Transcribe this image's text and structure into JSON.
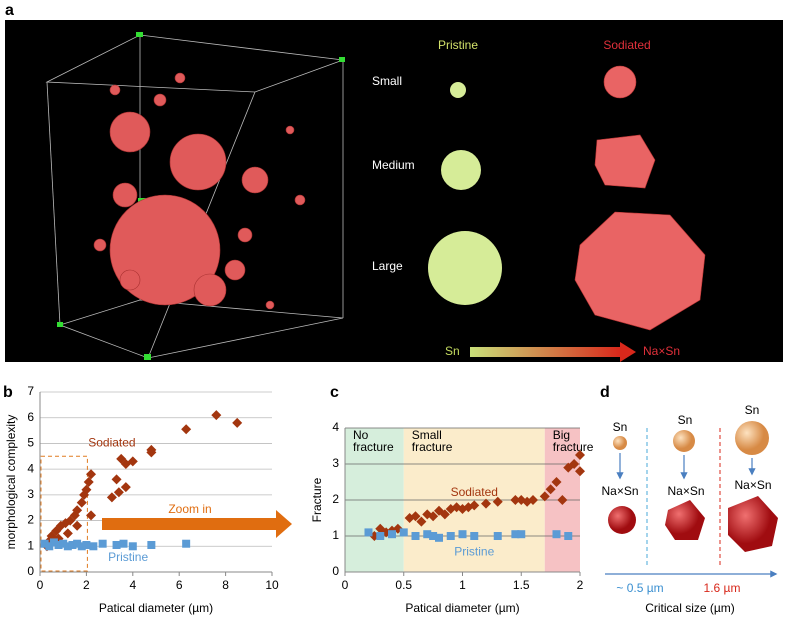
{
  "panel_labels": [
    "a",
    "b",
    "c",
    "d"
  ],
  "panel_a": {
    "columns": [
      "Pristine",
      "Sodiated"
    ],
    "rows": [
      "Small",
      "Medium",
      "Large"
    ],
    "gradient_start": "Sn",
    "gradient_end": "Na×Sn"
  },
  "chart_data": [
    {
      "type": "scatter",
      "xlabel": "Patical diameter (µm)",
      "ylabel": "morphological complexity",
      "annotation": "Zoom in",
      "xlim": [
        0,
        10
      ],
      "xticks": [
        0,
        2,
        4,
        6,
        8,
        10
      ],
      "ylim": [
        0,
        7
      ],
      "yticks": [
        0,
        1,
        2,
        3,
        4,
        5,
        6,
        7
      ],
      "grid": true,
      "zoom_box": {
        "xlim": [
          0,
          2
        ],
        "ylim": [
          0,
          4.5
        ]
      },
      "series": [
        {
          "name": "Sodiated",
          "color": "#a3360f",
          "marker": "diamond",
          "x": [
            7.6,
            8.5,
            6.3,
            4.8,
            4.8,
            3.5,
            3.7,
            4.0,
            3.3,
            3.7,
            3.4,
            3.1,
            2.2,
            2.1,
            2.0,
            1.9,
            1.8,
            1.6,
            1.5,
            1.3,
            1.1,
            0.9,
            0.7,
            0.5,
            0.4,
            2.2,
            1.6,
            1.2,
            0.8,
            0.3
          ],
          "values": [
            6.1,
            5.8,
            5.55,
            4.75,
            4.65,
            4.4,
            4.2,
            4.3,
            3.6,
            3.3,
            3.1,
            2.9,
            3.8,
            3.5,
            3.2,
            3.0,
            2.7,
            2.4,
            2.2,
            2.0,
            1.9,
            1.8,
            1.6,
            1.4,
            1.2,
            2.2,
            1.8,
            1.5,
            1.3,
            1.0
          ]
        },
        {
          "name": "Pristine",
          "color": "#5b9bd5",
          "marker": "square",
          "x": [
            0.2,
            0.4,
            0.6,
            0.8,
            1.0,
            1.2,
            1.4,
            1.6,
            1.8,
            2.0,
            2.3,
            2.7,
            3.3,
            3.6,
            4.0,
            4.8,
            6.3
          ],
          "values": [
            1.1,
            1.0,
            1.15,
            1.05,
            1.1,
            1.0,
            1.05,
            1.1,
            1.0,
            1.05,
            1.0,
            1.1,
            1.05,
            1.1,
            1.0,
            1.05,
            1.1
          ]
        }
      ]
    },
    {
      "type": "scatter",
      "xlabel": "Patical diameter (µm)",
      "ylabel": "Fracture",
      "xlim": [
        0,
        2
      ],
      "xticks": [
        0,
        0.5,
        1,
        1.5,
        2
      ],
      "ylim": [
        0,
        4
      ],
      "yticks": [
        0,
        1,
        2,
        3,
        4
      ],
      "grid": true,
      "regions": [
        {
          "label": "No fracture",
          "range": [
            0,
            0.5
          ],
          "color": "#d6eedc"
        },
        {
          "label": "Small fracture",
          "range": [
            0.5,
            1.7
          ],
          "color": "#fbeccb"
        },
        {
          "label": "Big fracture",
          "range": [
            1.7,
            2
          ],
          "color": "#f6c2c4"
        }
      ],
      "series": [
        {
          "name": "Sodiated",
          "color": "#a3360f",
          "marker": "diamond",
          "x": [
            0.25,
            0.3,
            0.35,
            0.4,
            0.45,
            0.55,
            0.6,
            0.65,
            0.7,
            0.75,
            0.8,
            0.85,
            0.9,
            0.95,
            1.0,
            1.05,
            1.1,
            1.2,
            1.3,
            1.45,
            1.5,
            1.55,
            1.6,
            1.7,
            1.75,
            1.8,
            1.85,
            1.9,
            1.95,
            2.0,
            2.0
          ],
          "values": [
            1.0,
            1.2,
            1.1,
            1.15,
            1.2,
            1.5,
            1.55,
            1.4,
            1.6,
            1.55,
            1.7,
            1.6,
            1.75,
            1.8,
            1.75,
            1.8,
            1.85,
            1.9,
            1.95,
            2.0,
            2.0,
            1.95,
            2.0,
            2.1,
            2.3,
            2.5,
            2.0,
            2.9,
            3.0,
            3.25,
            2.8
          ]
        },
        {
          "name": "Pristine",
          "color": "#5b9bd5",
          "marker": "square",
          "x": [
            0.2,
            0.3,
            0.4,
            0.5,
            0.6,
            0.7,
            0.75,
            0.8,
            0.9,
            1.0,
            1.1,
            1.3,
            1.45,
            1.5,
            1.8,
            1.9
          ],
          "values": [
            1.1,
            1.0,
            1.05,
            1.1,
            1.0,
            1.05,
            1.0,
            0.95,
            1.0,
            1.05,
            1.0,
            1.0,
            1.05,
            1.05,
            1.05,
            1.0
          ]
        }
      ]
    }
  ],
  "panel_d": {
    "top": [
      "Sn",
      "Sn",
      "Sn"
    ],
    "bottom": [
      "Na×Sn",
      "Na×Sn",
      "Na×Sn"
    ],
    "thresholds": [
      "~ 0.5 µm",
      "1.6 µm"
    ],
    "xlabel": "Critical size (µm)"
  }
}
